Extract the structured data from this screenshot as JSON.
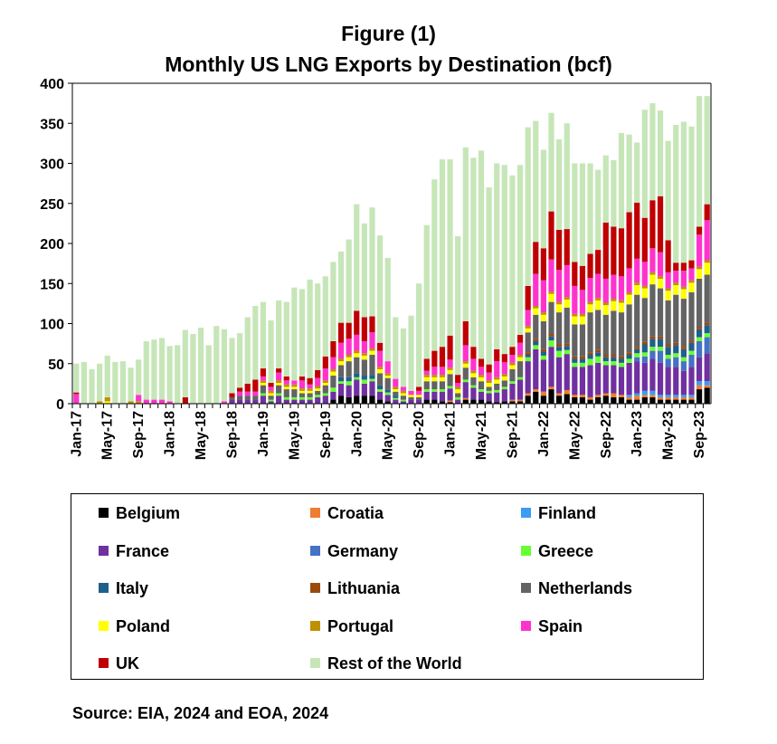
{
  "title_line1": "Figure (1)",
  "title_line2": "Monthly US LNG Exports by Destination  (bcf)",
  "source": "Source: EIA, 2024 and EOA, 2024",
  "chart_data": {
    "type": "bar",
    "stacked": true,
    "title": "Monthly US LNG Exports by Destination  (bcf)",
    "ylim": [
      0,
      400
    ],
    "yticks": [
      0,
      50,
      100,
      150,
      200,
      250,
      300,
      350,
      400
    ],
    "xtick_labels": [
      "Jan-17",
      "May-17",
      "Sep-17",
      "Jan-18",
      "May-18",
      "Sep-18",
      "Jan-19",
      "May-19",
      "Sep-19",
      "Jan-20",
      "May-20",
      "Sep-20",
      "Jan-21",
      "May-21",
      "Sep-21",
      "Jan-22",
      "May-22",
      "Sep-22",
      "Jan-23",
      "May-23",
      "Sep-23"
    ],
    "months": [
      "Jan-17",
      "Feb-17",
      "Mar-17",
      "Apr-17",
      "May-17",
      "Jun-17",
      "Jul-17",
      "Aug-17",
      "Sep-17",
      "Oct-17",
      "Nov-17",
      "Dec-17",
      "Jan-18",
      "Feb-18",
      "Mar-18",
      "Apr-18",
      "May-18",
      "Jun-18",
      "Jul-18",
      "Aug-18",
      "Sep-18",
      "Oct-18",
      "Nov-18",
      "Dec-18",
      "Jan-19",
      "Feb-19",
      "Mar-19",
      "Apr-19",
      "May-19",
      "Jun-19",
      "Jul-19",
      "Aug-19",
      "Sep-19",
      "Oct-19",
      "Nov-19",
      "Dec-19",
      "Jan-20",
      "Feb-20",
      "Mar-20",
      "Apr-20",
      "May-20",
      "Jun-20",
      "Jul-20",
      "Aug-20",
      "Sep-20",
      "Oct-20",
      "Nov-20",
      "Dec-20",
      "Jan-21",
      "Feb-21",
      "Mar-21",
      "Apr-21",
      "May-21",
      "Jun-21",
      "Jul-21",
      "Aug-21",
      "Sep-21",
      "Oct-21",
      "Nov-21",
      "Dec-21",
      "Jan-22",
      "Feb-22",
      "Mar-22",
      "Apr-22",
      "May-22",
      "Jun-22",
      "Jul-22",
      "Aug-22",
      "Sep-22",
      "Oct-22",
      "Nov-22",
      "Dec-22",
      "Jan-23",
      "Feb-23",
      "Mar-23",
      "Apr-23",
      "May-23",
      "Jun-23",
      "Jul-23",
      "Aug-23",
      "Sep-23",
      "Oct-23"
    ],
    "total": [
      50,
      52,
      43,
      50,
      60,
      52,
      53,
      45,
      55,
      78,
      80,
      82,
      72,
      73,
      92,
      87,
      95,
      73,
      97,
      93,
      82,
      88,
      108,
      122,
      127,
      104,
      129,
      127,
      145,
      143,
      155,
      150,
      159,
      177,
      190,
      205,
      249,
      225,
      245,
      210,
      182,
      108,
      94,
      110,
      150,
      223,
      280,
      305,
      305,
      209,
      320,
      307,
      316,
      270,
      300,
      298,
      285,
      298,
      345,
      353,
      317,
      363,
      330,
      350,
      300,
      300,
      300,
      292,
      310,
      304,
      338,
      336,
      326,
      367,
      375,
      366,
      328,
      348,
      352,
      346,
      384,
      384
    ],
    "legend_placement": "below",
    "series": [
      {
        "name": "Belgium",
        "color": "#000000",
        "values": [
          0,
          0,
          0,
          0,
          0,
          0,
          0,
          0,
          0,
          0,
          0,
          0,
          0,
          0,
          0,
          0,
          0,
          0,
          0,
          0,
          0,
          0,
          0,
          0,
          0,
          0,
          0,
          0,
          0,
          0,
          0,
          0,
          0,
          5,
          10,
          8,
          10,
          10,
          10,
          5,
          3,
          0,
          0,
          0,
          0,
          5,
          5,
          3,
          2,
          0,
          5,
          5,
          5,
          3,
          2,
          3,
          3,
          3,
          10,
          15,
          10,
          18,
          10,
          12,
          8,
          8,
          5,
          8,
          10,
          8,
          8,
          5,
          5,
          8,
          8,
          5,
          5,
          5,
          5,
          5,
          18,
          20
        ]
      },
      {
        "name": "Croatia",
        "color": "#ed7d31",
        "values": [
          0,
          0,
          0,
          0,
          0,
          0,
          0,
          0,
          0,
          0,
          0,
          0,
          0,
          0,
          0,
          0,
          0,
          0,
          0,
          0,
          0,
          0,
          0,
          0,
          0,
          0,
          0,
          0,
          0,
          0,
          0,
          0,
          0,
          0,
          0,
          0,
          0,
          0,
          0,
          0,
          0,
          0,
          0,
          0,
          0,
          0,
          0,
          0,
          2,
          0,
          2,
          0,
          0,
          0,
          0,
          0,
          2,
          2,
          3,
          3,
          5,
          3,
          3,
          5,
          3,
          3,
          3,
          3,
          3,
          5,
          3,
          3,
          5,
          3,
          3,
          3,
          3,
          3,
          3,
          3,
          5,
          3
        ]
      },
      {
        "name": "Finland",
        "color": "#3a9cf2",
        "values": [
          0,
          0,
          0,
          0,
          0,
          0,
          0,
          0,
          0,
          0,
          0,
          0,
          0,
          0,
          0,
          0,
          0,
          0,
          0,
          0,
          0,
          0,
          0,
          0,
          0,
          0,
          0,
          0,
          0,
          0,
          0,
          0,
          0,
          0,
          0,
          0,
          0,
          0,
          0,
          0,
          0,
          0,
          0,
          0,
          0,
          0,
          0,
          0,
          0,
          0,
          0,
          0,
          0,
          0,
          0,
          0,
          0,
          0,
          0,
          0,
          0,
          0,
          0,
          0,
          0,
          0,
          0,
          0,
          0,
          0,
          0,
          3,
          3,
          5,
          5,
          3,
          3,
          3,
          3,
          3,
          5,
          5
        ]
      },
      {
        "name": "France",
        "color": "#7030a0",
        "values": [
          0,
          0,
          0,
          0,
          0,
          0,
          0,
          0,
          0,
          0,
          0,
          0,
          0,
          0,
          0,
          0,
          0,
          0,
          0,
          0,
          5,
          5,
          5,
          5,
          10,
          3,
          10,
          5,
          5,
          5,
          5,
          8,
          10,
          10,
          15,
          15,
          20,
          15,
          18,
          10,
          8,
          5,
          3,
          5,
          5,
          10,
          10,
          12,
          15,
          5,
          20,
          15,
          10,
          10,
          12,
          15,
          20,
          25,
          40,
          50,
          40,
          50,
          45,
          45,
          35,
          35,
          40,
          40,
          35,
          35,
          35,
          40,
          40,
          35,
          40,
          40,
          35,
          35,
          30,
          35,
          30,
          35
        ]
      },
      {
        "name": "Germany",
        "color": "#4472c4",
        "values": [
          0,
          0,
          0,
          0,
          0,
          0,
          0,
          0,
          0,
          0,
          0,
          0,
          0,
          0,
          0,
          0,
          0,
          0,
          0,
          0,
          0,
          0,
          0,
          0,
          0,
          0,
          0,
          0,
          0,
          0,
          0,
          0,
          0,
          0,
          0,
          0,
          0,
          0,
          0,
          0,
          0,
          0,
          0,
          0,
          0,
          0,
          0,
          0,
          0,
          0,
          0,
          0,
          0,
          0,
          0,
          0,
          0,
          0,
          0,
          0,
          0,
          0,
          0,
          0,
          0,
          0,
          0,
          0,
          0,
          0,
          0,
          0,
          5,
          8,
          10,
          15,
          10,
          12,
          12,
          15,
          20,
          20
        ]
      },
      {
        "name": "Greece",
        "color": "#66ff33",
        "values": [
          0,
          0,
          0,
          0,
          0,
          0,
          0,
          0,
          0,
          0,
          0,
          0,
          0,
          0,
          0,
          0,
          0,
          0,
          0,
          0,
          0,
          0,
          0,
          0,
          3,
          2,
          3,
          3,
          3,
          3,
          3,
          3,
          3,
          5,
          3,
          5,
          3,
          5,
          3,
          3,
          3,
          2,
          2,
          0,
          0,
          3,
          3,
          3,
          3,
          3,
          3,
          3,
          3,
          3,
          3,
          3,
          3,
          3,
          5,
          5,
          5,
          8,
          8,
          5,
          5,
          5,
          8,
          8,
          5,
          5,
          5,
          5,
          5,
          5,
          5,
          5,
          5,
          5,
          5,
          5,
          5,
          5
        ]
      },
      {
        "name": "Italy",
        "color": "#1f5f8b",
        "values": [
          0,
          0,
          0,
          0,
          0,
          0,
          0,
          0,
          0,
          0,
          0,
          0,
          0,
          0,
          0,
          0,
          0,
          0,
          0,
          0,
          0,
          0,
          0,
          0,
          0,
          0,
          0,
          0,
          0,
          0,
          0,
          0,
          0,
          0,
          5,
          5,
          5,
          5,
          5,
          5,
          3,
          3,
          0,
          0,
          0,
          0,
          0,
          0,
          0,
          0,
          0,
          0,
          0,
          0,
          0,
          0,
          0,
          0,
          3,
          5,
          5,
          5,
          5,
          5,
          5,
          5,
          5,
          5,
          5,
          5,
          5,
          5,
          5,
          10,
          10,
          10,
          10,
          10,
          10,
          10,
          10,
          10
        ]
      },
      {
        "name": "Lithuania",
        "color": "#9c4a0c",
        "values": [
          0,
          0,
          0,
          0,
          0,
          0,
          0,
          0,
          0,
          0,
          0,
          0,
          0,
          0,
          0,
          0,
          0,
          0,
          0,
          0,
          0,
          0,
          0,
          0,
          0,
          0,
          0,
          0,
          0,
          0,
          0,
          0,
          0,
          0,
          0,
          0,
          0,
          0,
          0,
          0,
          0,
          0,
          0,
          0,
          0,
          0,
          0,
          0,
          0,
          0,
          0,
          0,
          0,
          0,
          0,
          0,
          0,
          0,
          3,
          3,
          3,
          3,
          3,
          3,
          3,
          3,
          3,
          3,
          3,
          3,
          3,
          3,
          3,
          3,
          3,
          3,
          3,
          3,
          3,
          3,
          3,
          3
        ]
      },
      {
        "name": "Netherlands",
        "color": "#636363",
        "values": [
          0,
          0,
          0,
          0,
          0,
          0,
          0,
          0,
          0,
          0,
          0,
          0,
          0,
          0,
          0,
          0,
          0,
          0,
          0,
          0,
          3,
          5,
          5,
          5,
          10,
          5,
          10,
          10,
          10,
          5,
          5,
          5,
          10,
          15,
          15,
          20,
          20,
          20,
          25,
          15,
          15,
          5,
          5,
          3,
          3,
          10,
          10,
          10,
          15,
          5,
          15,
          10,
          10,
          5,
          8,
          8,
          15,
          20,
          25,
          30,
          35,
          40,
          40,
          45,
          40,
          40,
          50,
          50,
          50,
          55,
          55,
          60,
          65,
          55,
          65,
          60,
          55,
          60,
          60,
          60,
          60,
          60
        ]
      },
      {
        "name": "Poland",
        "color": "#ffff00",
        "values": [
          0,
          0,
          0,
          0,
          3,
          0,
          0,
          0,
          0,
          0,
          0,
          0,
          0,
          0,
          0,
          0,
          0,
          0,
          0,
          0,
          0,
          0,
          0,
          0,
          3,
          3,
          3,
          3,
          3,
          3,
          3,
          3,
          3,
          5,
          5,
          5,
          5,
          5,
          5,
          5,
          3,
          3,
          3,
          3,
          3,
          5,
          5,
          5,
          5,
          5,
          5,
          5,
          5,
          5,
          5,
          5,
          5,
          5,
          5,
          8,
          8,
          10,
          10,
          10,
          10,
          10,
          10,
          12,
          12,
          12,
          12,
          12,
          12,
          12,
          12,
          12,
          12,
          12,
          12,
          12,
          12,
          15
        ]
      },
      {
        "name": "Portugal",
        "color": "#bf9000",
        "values": [
          0,
          0,
          0,
          3,
          5,
          0,
          0,
          3,
          3,
          0,
          0,
          0,
          0,
          0,
          0,
          0,
          0,
          0,
          0,
          0,
          0,
          0,
          0,
          0,
          3,
          3,
          3,
          3,
          3,
          3,
          3,
          3,
          3,
          3,
          3,
          3,
          3,
          3,
          3,
          3,
          3,
          3,
          3,
          0,
          0,
          3,
          3,
          3,
          3,
          3,
          3,
          3,
          3,
          3,
          3,
          3,
          3,
          3,
          3,
          3,
          3,
          3,
          3,
          3,
          3,
          3,
          3,
          3,
          3,
          3,
          3,
          3,
          3,
          3,
          3,
          3,
          3,
          3,
          3,
          3,
          3,
          3
        ]
      },
      {
        "name": "Spain",
        "color": "#ff33cc",
        "values": [
          12,
          0,
          0,
          0,
          0,
          0,
          0,
          0,
          8,
          5,
          5,
          5,
          3,
          0,
          0,
          0,
          0,
          0,
          0,
          3,
          0,
          5,
          5,
          5,
          5,
          5,
          10,
          5,
          5,
          10,
          5,
          10,
          15,
          15,
          20,
          20,
          20,
          15,
          20,
          20,
          15,
          10,
          5,
          5,
          5,
          5,
          10,
          10,
          10,
          5,
          20,
          15,
          10,
          10,
          20,
          15,
          10,
          15,
          20,
          40,
          40,
          40,
          40,
          40,
          35,
          30,
          30,
          30,
          30,
          30,
          30,
          30,
          30,
          30,
          30,
          30,
          20,
          15,
          20,
          15,
          40,
          50
        ]
      },
      {
        "name": "UK",
        "color": "#c00000",
        "values": [
          2,
          0,
          0,
          0,
          0,
          0,
          0,
          0,
          0,
          0,
          0,
          0,
          0,
          0,
          8,
          0,
          0,
          0,
          0,
          0,
          5,
          5,
          10,
          15,
          10,
          5,
          5,
          5,
          0,
          5,
          8,
          10,
          15,
          20,
          25,
          20,
          30,
          30,
          20,
          10,
          0,
          0,
          0,
          0,
          5,
          15,
          20,
          25,
          30,
          10,
          30,
          15,
          10,
          10,
          15,
          10,
          10,
          10,
          30,
          40,
          40,
          60,
          50,
          45,
          30,
          30,
          30,
          30,
          70,
          60,
          60,
          70,
          70,
          55,
          60,
          70,
          40,
          10,
          10,
          10,
          10,
          20
        ]
      }
    ]
  },
  "legend_text": {
    "belgium": "Belgium",
    "croatia": "Croatia",
    "finland": "Finland",
    "france": "France",
    "germany": "Germany",
    "greece": "Greece",
    "italy": "Italy",
    "lithuania": "Lithuania",
    "netherlands": "Netherlands",
    "poland": "Poland",
    "portugal": "Portugal",
    "spain": "Spain",
    "uk": "UK",
    "rest": "Rest of the World"
  },
  "legend_colors": {
    "belgium": "#000000",
    "croatia": "#ed7d31",
    "finland": "#3a9cf2",
    "france": "#7030a0",
    "germany": "#4472c4",
    "greece": "#66ff33",
    "italy": "#1f5f8b",
    "lithuania": "#9c4a0c",
    "netherlands": "#636363",
    "poland": "#ffff00",
    "portugal": "#bf9000",
    "spain": "#ff33cc",
    "uk": "#c00000",
    "rest": "#c6e6b8"
  }
}
